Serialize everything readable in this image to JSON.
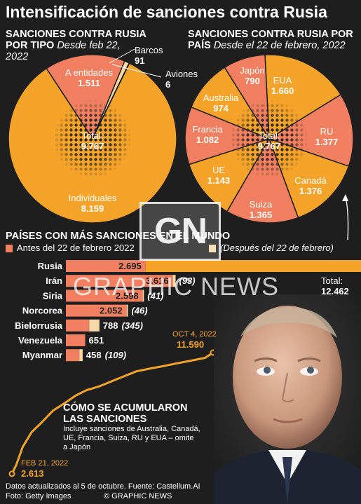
{
  "title": "Intensificación de sanciones contra Rusia",
  "by_type": {
    "title_line1": "SANCIONES CONTRA RUSIA",
    "title_line2a": "POR TIPO",
    "subtitle_part1": "Desde feb 22,",
    "subtitle_part2": "2022",
    "total_label": "Total:",
    "total_value": "9.767"
  },
  "by_country": {
    "title_line1": "SANCIONES CONTRA RUSIA POR",
    "title_line2a": "PAÍS",
    "subtitle": "Desde el 22 de febrero, 2022",
    "total_label": "Total:",
    "total_value": "9.767"
  },
  "ranking": {
    "title": "PAÍSES CON MÁS SANCIONES EN EL MUNDO",
    "legend_before": "Antes del 22 de febrero 2022",
    "legend_after": "(Después del 22 de febrero)",
    "russia_total_label": "Total:",
    "russia_total_value": "12.462"
  },
  "cumulative": {
    "title_line1": "CÓMO SE ACUMULARON",
    "title_line2": "LAS SANCIONES",
    "note_line1": "Incluye sanciones de Australia, Canadá,",
    "note_line2": "UE, Francia, Suiza, RU y  EUA – omite",
    "note_line3": "a Japón",
    "start_date": "FEB 21, 2022",
    "start_value": "2.613",
    "end_date": "OCT 4, 2022",
    "end_value": "11.590"
  },
  "footer": {
    "source": "Datos actualizados al 5 de octubre. Fuente: Castellum.AI",
    "photo": "Foto: Getty Images",
    "credit": "© GRAPHIC NEWS"
  },
  "watermark": {
    "logo": "GN",
    "text": "GRAPHIC NEWS"
  },
  "colors": {
    "background": "#1e1e1e",
    "orange": "#f6a429",
    "salmon": "#f27f5f",
    "cream": "#f5d9a8",
    "text": "#ffffff"
  },
  "chart_data": [
    {
      "type": "pie",
      "title": "SANCIONES CONTRA RUSIA POR TIPO",
      "subtitle": "Desde feb 22, 2022",
      "slices": [
        {
          "name": "Individuales",
          "label": "Individuales",
          "value": 8159,
          "display": "8.159"
        },
        {
          "name": "A entidades",
          "label": "A entidades",
          "value": 1511,
          "display": "1.511"
        },
        {
          "name": "Barcos",
          "label": "Barcos",
          "value": 91,
          "display": "91"
        },
        {
          "name": "Aviones",
          "label": "Aviones",
          "value": 6,
          "display": "6"
        }
      ],
      "total": 9767
    },
    {
      "type": "pie",
      "title": "SANCIONES CONTRA RUSIA POR PAÍS",
      "subtitle": "Desde el 22 de febrero, 2022",
      "slices": [
        {
          "name": "EUA",
          "label": "EUA",
          "value": 1660,
          "display": "1.660"
        },
        {
          "name": "RU",
          "label": "RU",
          "value": 1377,
          "display": "1.377"
        },
        {
          "name": "Canadá",
          "label": "Canadá",
          "value": 1376,
          "display": "1.376"
        },
        {
          "name": "Suiza",
          "label": "Suiza",
          "value": 1365,
          "display": "1.365"
        },
        {
          "name": "UE",
          "label": "UE",
          "value": 1143,
          "display": "1.143"
        },
        {
          "name": "Francia",
          "label": "Francia",
          "value": 1082,
          "display": "1.082"
        },
        {
          "name": "Australia",
          "label": "Australia",
          "value": 974,
          "display": "974"
        },
        {
          "name": "Japón",
          "label": "Japón",
          "value": 790,
          "display": "790"
        }
      ],
      "total": 9767
    },
    {
      "type": "bar",
      "orientation": "horizontal",
      "stacked": true,
      "title": "PAÍSES CON MÁS SANCIONES EN EL MUNDO",
      "categories": [
        "Rusia",
        "Irán",
        "Siria",
        "Norcorea",
        "Bielorrusia",
        "Venezuela",
        "Myanmar"
      ],
      "series": [
        {
          "name": "Antes del 22 de febrero 2022",
          "values": [
            2695,
            3616,
            2598,
            2052,
            788,
            651,
            458
          ],
          "labels": [
            "2.695",
            "3.616",
            "2.598",
            "2.052",
            "788",
            "651",
            "458"
          ]
        },
        {
          "name": "(Después del 22 de febrero)",
          "values": [
            9767,
            93,
            41,
            46,
            345,
            0,
            109
          ],
          "labels": [
            "(9.767)",
            "(93)",
            "(41)",
            "(46)",
            "(345)",
            "",
            "(109)"
          ]
        }
      ]
    },
    {
      "type": "line",
      "title": "CÓMO SE ACUMULARON LAS SANCIONES",
      "x": [
        "2022-02-21",
        "2022-02-26",
        "2022-03-05",
        "2022-03-15",
        "2022-03-26",
        "2022-04-08",
        "2022-04-20",
        "2022-05-03",
        "2022-05-15",
        "2022-05-30",
        "2022-06-10",
        "2022-06-25",
        "2022-07-10",
        "2022-07-25",
        "2022-08-10",
        "2022-08-25",
        "2022-09-10",
        "2022-09-25",
        "2022-10-04"
      ],
      "series": [
        {
          "name": "",
          "values": [
            2613,
            3300,
            4600,
            5700,
            6400,
            7300,
            7800,
            8400,
            8800,
            9100,
            9400,
            9800,
            10200,
            10400,
            10600,
            10800,
            11000,
            11200,
            11590
          ]
        }
      ]
    }
  ]
}
